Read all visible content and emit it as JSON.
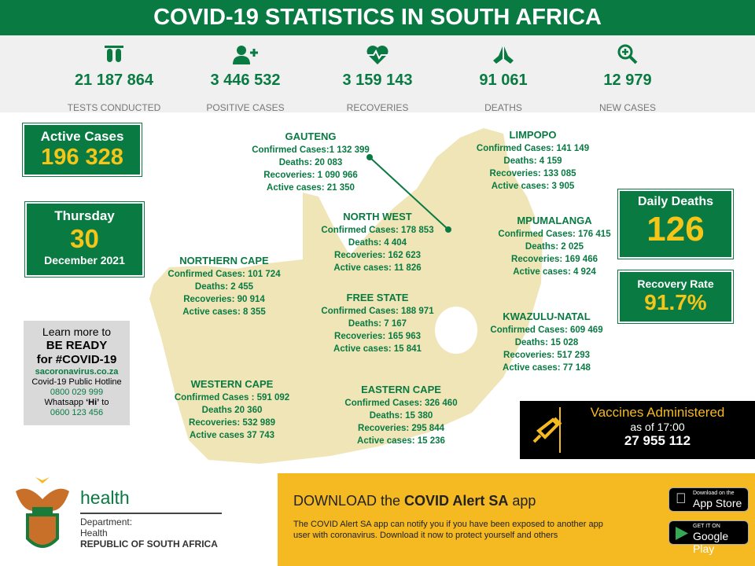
{
  "title": "COVID-19 STATISTICS IN SOUTH AFRICA",
  "stats": [
    {
      "icon": "test-tubes-icon",
      "value": "21 187 864",
      "label": "TESTS CONDUCTED"
    },
    {
      "icon": "user-plus-icon",
      "value": "3 446 532",
      "label": "POSITIVE CASES"
    },
    {
      "icon": "heartbeat-icon",
      "value": "3 159 143",
      "label": "RECOVERIES"
    },
    {
      "icon": "praying-hands-icon",
      "value": "91 061",
      "label": "DEATHS"
    },
    {
      "icon": "zoom-plus-icon",
      "value": "12 979",
      "label": "NEW CASES"
    }
  ],
  "active": {
    "label": "Active Cases",
    "value": "196 328"
  },
  "date": {
    "weekday": "Thursday",
    "day": "30",
    "month_year": "December 2021"
  },
  "daily_deaths": {
    "label": "Daily Deaths",
    "value": "126"
  },
  "recovery_rate": {
    "label": "Recovery Rate",
    "value": "91.7%"
  },
  "provinces": [
    {
      "name": "GAUTENG",
      "lines": [
        "Confirmed Cases:1  132 399",
        "Deaths: 20 083",
        "Recoveries: 1 090 966",
        "Active cases: 21 350"
      ]
    },
    {
      "name": "LIMPOPO",
      "lines": [
        "Confirmed Cases: 141 149",
        "Deaths:  4 159",
        "Recoveries: 133 085",
        "Active cases: 3 905"
      ]
    },
    {
      "name": "NORTH WEST",
      "lines": [
        "Confirmed Cases: 178 853",
        "Deaths:  4 404",
        "Recoveries: 162 623",
        "Active cases: 11 826"
      ]
    },
    {
      "name": "MPUMALANGA",
      "lines": [
        "Confirmed Cases: 176 415",
        "Deaths:  2 025",
        "Recoveries: 169 466",
        "Active cases: 4 924"
      ]
    },
    {
      "name": "NORTHERN CAPE",
      "lines": [
        "Confirmed Cases:  101 724",
        "Deaths: 2 455",
        "Recoveries: 90 914",
        "Active cases: 8 355"
      ]
    },
    {
      "name": "FREE STATE",
      "lines": [
        "Confirmed Cases: 188 971",
        "Deaths: 7 167",
        "Recoveries: 165 963",
        "Active cases: 15 841"
      ]
    },
    {
      "name": "KWAZULU-NATAL",
      "lines": [
        "Confirmed Cases: 609 469",
        "Deaths: 15 028",
        "Recoveries: 517 293",
        "Active cases: 77 148"
      ]
    },
    {
      "name": "WESTERN CAPE",
      "lines": [
        "Confirmed Cases : 591 092",
        "Deaths 20 360",
        "Recoveries: 532 989",
        "Active cases 37 743"
      ]
    },
    {
      "name": "EASTERN CAPE",
      "lines": [
        "Confirmed Cases: 326 460",
        "Deaths: 15 380",
        "Recoveries: 295 844",
        "Active cases: 15 236"
      ]
    }
  ],
  "learn": {
    "l1": "Learn more to",
    "l2": "BE READY",
    "l3": "for #COVID-19",
    "site": "sacoronavirus.co.za",
    "hotline_label": "Covid-19 Public Hotline",
    "hotline": "0800 029 999",
    "whatsapp_pre": "Whatsapp ",
    "whatsapp_hi": "‘Hi’",
    "whatsapp_post": " to",
    "whatsapp": "0600 123 456"
  },
  "vaccines": {
    "icon": "syringe-icon",
    "label": "Vaccines Administered",
    "as_of": "as of 17:00",
    "value": "27 955 112"
  },
  "health": {
    "logo": "health",
    "dept": "Department:",
    "dept2": "Health",
    "rsa": "REPUBLIC OF SOUTH AFRICA"
  },
  "download": {
    "pre": "DOWNLOAD the ",
    "bold": "COVID Alert SA",
    "post": " app",
    "desc1": "The COVID Alert SA app can notify you if you have been exposed to another app",
    "desc2": "user with coronavirus. Download it now to protect yourself and others",
    "appstore_small": "Download on the",
    "appstore": "App Store",
    "gplay_small": "GET IT ON",
    "gplay": "Google Play"
  },
  "colors": {
    "green": "#0a7a43",
    "yellow": "#f5c518",
    "map": "#efe5b6",
    "banner": "#f5b921"
  }
}
